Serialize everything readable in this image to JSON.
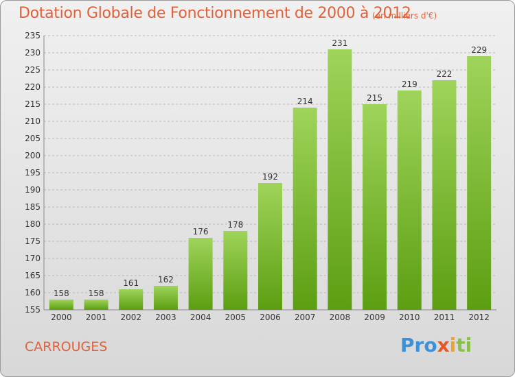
{
  "title": "Dotation Globale de Fonctionnement de 2000 à 2012",
  "unit_note": "(en milliers d'€)",
  "commune": "CARROUGES",
  "logo": {
    "p1": "Pro",
    "p2": "x",
    "p3": "i",
    "p4": "ti"
  },
  "colors": {
    "bar_top": "#9fd45a",
    "bar_bottom": "#5c9e12",
    "title": "#e0623a"
  },
  "chart_data": {
    "type": "bar",
    "title": "Dotation Globale de Fonctionnement de 2000 à 2012",
    "xlabel": "",
    "ylabel": "",
    "categories": [
      "2000",
      "2001",
      "2002",
      "2003",
      "2004",
      "2005",
      "2006",
      "2007",
      "2008",
      "2009",
      "2010",
      "2011",
      "2012"
    ],
    "values": [
      158,
      158,
      161,
      162,
      176,
      178,
      192,
      214,
      231,
      215,
      219,
      222,
      229
    ],
    "ylim": [
      155,
      235
    ],
    "yticks": [
      155,
      160,
      165,
      170,
      175,
      180,
      185,
      190,
      195,
      200,
      205,
      210,
      215,
      220,
      225,
      230,
      235
    ],
    "grid": "horizontal dashed",
    "legend": "none"
  }
}
